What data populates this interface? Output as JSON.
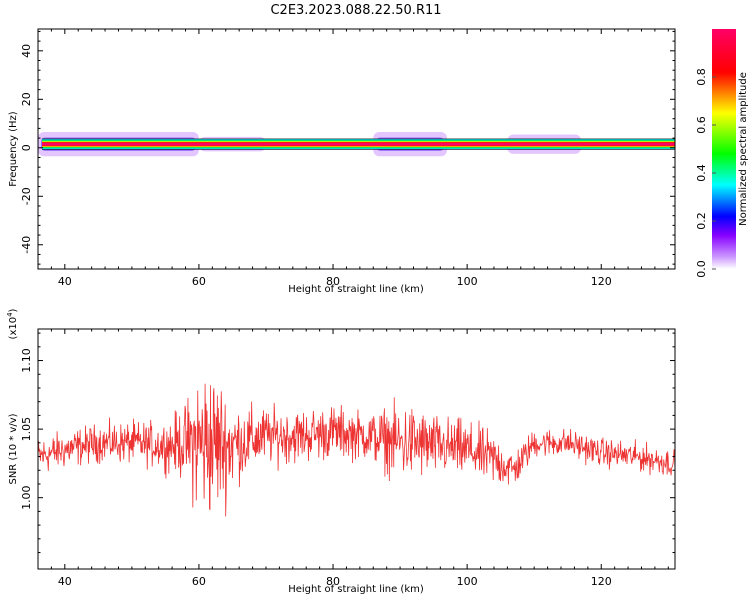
{
  "title": "C2E3.2023.088.22.50.R11",
  "chart_data": [
    {
      "type": "heatmap",
      "xlabel": "Height of straight line (km)",
      "ylabel": "Frequency (Hz)",
      "xlim": [
        36,
        131
      ],
      "ylim": [
        -50,
        49
      ],
      "xticks": [
        "40",
        "60",
        "80",
        "100",
        "120"
      ],
      "yticks": [
        "40",
        "20",
        "0",
        "-20",
        "-40"
      ],
      "yticks_values": [
        40,
        20,
        0,
        -20,
        -40
      ],
      "xticks_values": [
        40,
        60,
        80,
        100,
        120
      ],
      "colorbar": {
        "label": "Normalized spectral amplitude",
        "ticks": [
          "0.0",
          "0.2",
          "0.4",
          "0.6",
          "0.8"
        ],
        "ticks_values": [
          0.0,
          0.2,
          0.4,
          0.6,
          0.8
        ],
        "range": [
          0,
          1
        ],
        "colors": [
          "#ffffff",
          "#8800ff",
          "#0000ff",
          "#00ffff",
          "#00ff00",
          "#ffff00",
          "#ff0000",
          "#ff0066"
        ]
      },
      "band": {
        "center_hz": 1.5,
        "core_halfwidth_hz": 1.2,
        "spread_segments": [
          {
            "x": [
              36,
              60
            ],
            "halfwidth_hz": 5
          },
          {
            "x": [
              60,
              70
            ],
            "halfwidth_hz": 3
          },
          {
            "x": [
              86,
              97
            ],
            "halfwidth_hz": 5
          },
          {
            "x": [
              106,
              117
            ],
            "halfwidth_hz": 4
          }
        ]
      }
    },
    {
      "type": "line",
      "xlabel": "Height of straight line (km)",
      "ylabel": "SNR (10 * v/v)",
      "scale_label": "(x10",
      "scale_exp": "4",
      "scale_close": ")",
      "xlim": [
        36,
        131
      ],
      "ylim": [
        0.948,
        1.123
      ],
      "xticks": [
        "40",
        "60",
        "80",
        "100",
        "120"
      ],
      "xticks_values": [
        40,
        60,
        80,
        100,
        120
      ],
      "yticks": [
        "1.00",
        "1.05",
        "1.10"
      ],
      "yticks_values": [
        1.0,
        1.05,
        1.1
      ],
      "color": "#ee3333",
      "series": [
        {
          "x": [
            36,
            40,
            45,
            50,
            55,
            58,
            60,
            62,
            64,
            66,
            70,
            75,
            80,
            85,
            90,
            92,
            95,
            100,
            104,
            107,
            110,
            115,
            120,
            125,
            131
          ],
          "mean": [
            1.03,
            1.035,
            1.04,
            1.04,
            1.038,
            1.04,
            1.04,
            1.04,
            1.038,
            1.04,
            1.045,
            1.045,
            1.048,
            1.045,
            1.04,
            1.04,
            1.038,
            1.035,
            1.028,
            1.02,
            1.04,
            1.04,
            1.033,
            1.03,
            1.025
          ],
          "spread": [
            0.02,
            0.02,
            0.02,
            0.022,
            0.025,
            0.04,
            0.08,
            0.08,
            0.06,
            0.04,
            0.03,
            0.028,
            0.028,
            0.025,
            0.04,
            0.04,
            0.032,
            0.03,
            0.028,
            0.02,
            0.015,
            0.015,
            0.015,
            0.015,
            0.015
          ]
        }
      ]
    }
  ]
}
